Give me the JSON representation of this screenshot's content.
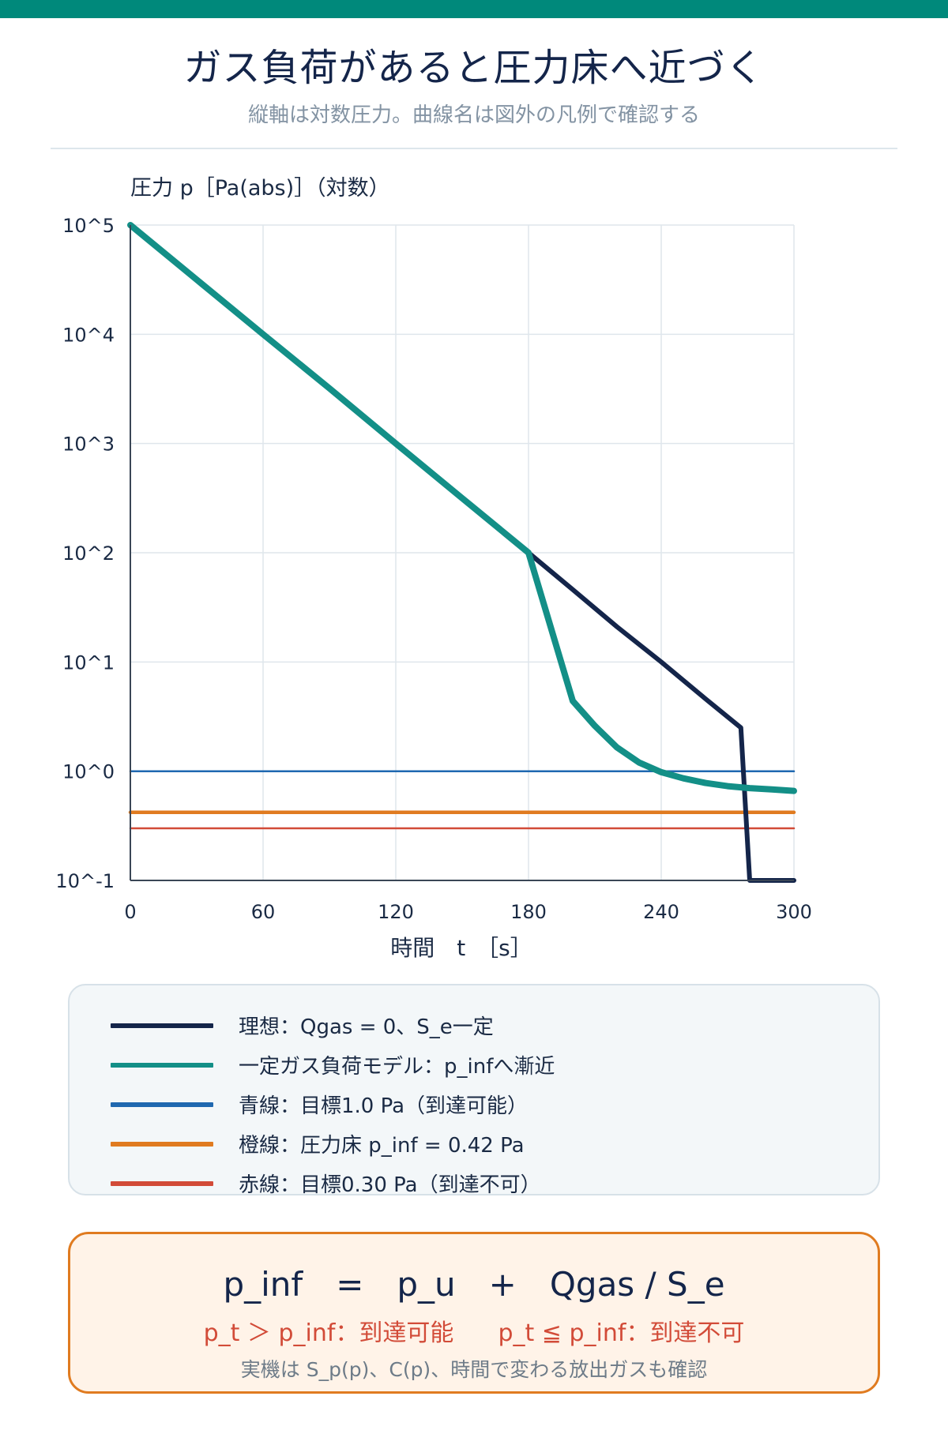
{
  "header": {
    "title": "ガス負荷があると圧力床へ近づく",
    "subtitle": "縦軸は対数圧力。曲線名は図外の凡例で確認する"
  },
  "colors": {
    "accent_bar": "#00897b",
    "ideal": "#14254a",
    "gas_load": "#138f87",
    "target_1": "#1f68b0",
    "floor": "#e07b20",
    "target_030": "#d24b38"
  },
  "chart_data": {
    "type": "line",
    "title": "",
    "ylabel": "圧力 p［Pa(abs)］（対数）",
    "xlabel": "時間　t　［s］",
    "xlim": [
      0,
      300
    ],
    "ylim": [
      0.1,
      100000
    ],
    "yscale": "log",
    "xticks": [
      0,
      60,
      120,
      180,
      240,
      300
    ],
    "xtick_labels": [
      "0",
      "60",
      "120",
      "180",
      "240",
      "300"
    ],
    "yticks": [
      0.1,
      1,
      10,
      100,
      1000,
      10000,
      100000
    ],
    "ytick_labels": [
      "10^-1",
      "10^0",
      "10^1",
      "10^2",
      "10^3",
      "10^4",
      "10^5"
    ],
    "grid": true,
    "legend_position": "below chart",
    "series": [
      {
        "name": "理想：Qgas = 0、S_e一定",
        "color": "#14254a",
        "x": [
          0,
          30,
          60,
          90,
          120,
          150,
          180,
          200,
          220,
          240,
          260,
          276,
          280,
          300
        ],
        "y": [
          100000,
          31600,
          10000,
          3200,
          1000,
          316,
          100,
          46,
          21,
          10,
          4.6,
          2.5,
          0.1,
          0.1
        ]
      },
      {
        "name": "一定ガス負荷モデル：p_infへ漸近",
        "color": "#138f87",
        "x": [
          0,
          30,
          60,
          90,
          120,
          150,
          180,
          200,
          210,
          220,
          230,
          240,
          250,
          260,
          270,
          280,
          290,
          300
        ],
        "y": [
          100000,
          31600,
          10000,
          3200,
          1000,
          316,
          100,
          4.4,
          2.6,
          1.65,
          1.2,
          0.98,
          0.86,
          0.78,
          0.73,
          0.7,
          0.68,
          0.66
        ]
      },
      {
        "name": "青線：目標1.0 Pa（到達可能）",
        "color": "#1f68b0",
        "x": [
          0,
          300
        ],
        "y": [
          1.0,
          1.0
        ]
      },
      {
        "name": "橙線：圧力床 p_inf = 0.42 Pa",
        "color": "#e07b20",
        "x": [
          0,
          300
        ],
        "y": [
          0.42,
          0.42
        ]
      },
      {
        "name": "赤線：目標0.30 Pa（到達不可）",
        "color": "#d24b38",
        "x": [
          0,
          300
        ],
        "y": [
          0.3,
          0.3
        ]
      }
    ]
  },
  "legend": {
    "items": [
      {
        "label": "理想：Qgas = 0、S_e一定",
        "color": "#14254a"
      },
      {
        "label": "一定ガス負荷モデル：p_infへ漸近",
        "color": "#138f87"
      },
      {
        "label": "青線：目標1.0 Pa（到達可能）",
        "color": "#1f68b0"
      },
      {
        "label": "橙線：圧力床 p_inf = 0.42 Pa",
        "color": "#e07b20"
      },
      {
        "label": "赤線：目標0.30 Pa（到達不可）",
        "color": "#d24b38"
      }
    ]
  },
  "formula": {
    "main": "p_inf　=　p_u　+　Qgas / S_e",
    "cond_reachable": "p_t ＞ p_inf：到達可能",
    "cond_unreachable": "p_t ≦ p_inf：到達不可",
    "note": "実機は S_p(p)、C(p)、時間で変わる放出ガスも確認"
  }
}
